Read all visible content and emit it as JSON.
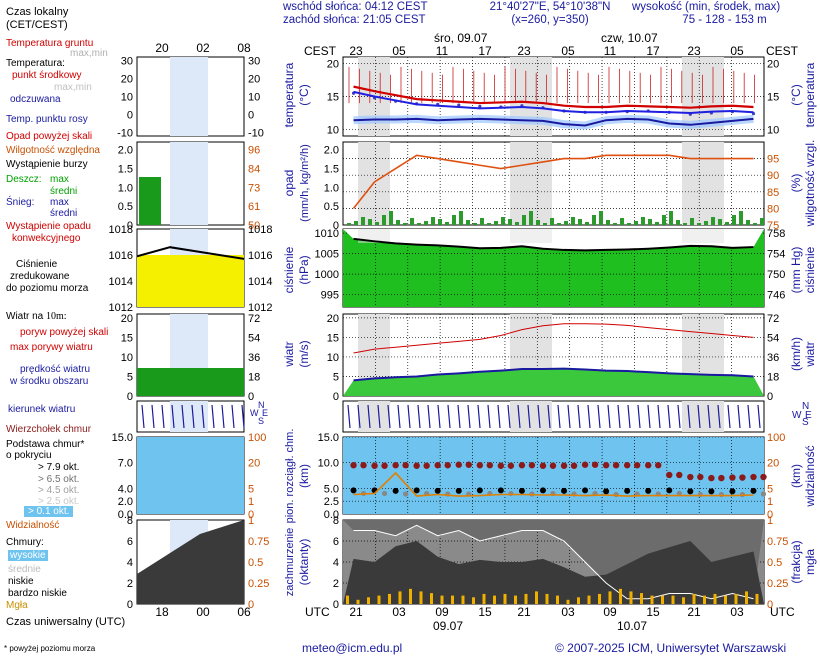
{
  "header": {
    "sunrise": "wschód słońca: 04:12 CEST",
    "sunset": "zachód słońca: 21:05 CEST",
    "coords": "21°40'27\"E, 54°10'38\"N",
    "grid": "(x=260, y=350)",
    "alt_title": "wysokość (min, środek, max)",
    "alt_values": "75 - 128 - 153 m",
    "cest": "CEST",
    "day1": "śro, 09.07",
    "day2": "czw, 10.07",
    "top_hours": [
      "23",
      "05",
      "11",
      "17",
      "23",
      "05",
      "11",
      "17",
      "23",
      "05"
    ],
    "left_top_hours": [
      "20",
      "02",
      "08"
    ],
    "utc": "UTC",
    "bottom_hours": [
      "21",
      "03",
      "09",
      "15",
      "21",
      "03",
      "09",
      "15",
      "21",
      "03"
    ],
    "bottom_day1": "09.07",
    "bottom_day2": "10.07",
    "left_bottom_hours": [
      "18",
      "00",
      "06"
    ]
  },
  "legend": {
    "time_zone": "Czas lokalny",
    "time_zone2": "(CET/CEST)",
    "soil_temp": "Temperatura gruntu",
    "maxmin": "max,min",
    "temperature": "Temperatura:",
    "midpoint": "punkt środkowy",
    "maxmin2": "max,min",
    "felt": "odczuwana",
    "dew": "Temp. punktu rosy",
    "rain_over": "Opad powyżej skali",
    "humidity": "Wilgotność względna",
    "storm": "Wystąpienie burzy",
    "rain": "Deszcz:",
    "rain_max": "max",
    "rain_mean": "średni",
    "snow": "Śnieg:",
    "snow_max": "max",
    "snow_mean": "średni",
    "conv": "Wystąpienie opadu",
    "conv2": "konwekcyjnego",
    "pressure": "Ciśnienie",
    "pressure2": "zredukowane",
    "pressure3": "do poziomu morza",
    "wind": "Wiatr na",
    "wind_h": "10m:",
    "gust_over": "poryw powyżej skali",
    "gust_max": "max porywy wiatru",
    "wind_speed": "prędkość wiatru",
    "wind_area": "w środku obszaru",
    "wind_dir": "kierunek wiatru",
    "cloud_top": "Wierzchołek chmur",
    "cloud_base": "Podstawa chmur*",
    "cloud_base2": "o pokryciu",
    "okt1": "> 7.9 okt.",
    "okt2": "> 6.5 okt.",
    "okt3": "> 4.5 okt.",
    "okt4": "> 2.5 okt.",
    "okt5": "> 0.1 okt.",
    "visibility": "Widzialność",
    "clouds": "Chmury:",
    "cl_high": "wysokie",
    "cl_mid": "średnie",
    "cl_low": "niskie",
    "cl_vlow": "bardzo niskie",
    "fog": "Mgła",
    "utc_time": "Czas uniwersalny (UTC)",
    "footnote": "* powyżej poziomu morza"
  },
  "axis_labels": {
    "temp_l": "temperatura",
    "temp_lu": "(°C)",
    "temp_ru": "(°C)",
    "temp_r": "temperatura",
    "rain_l": "opad",
    "rain_lu": "(mm/h, kg/m²/h)",
    "hum_ru": "(%)",
    "hum_r": "wilgotność wzgl.",
    "pres_l": "ciśnienie",
    "pres_lu": "(hPa)",
    "pres_ru": "(mm Hg)",
    "pres_r": "ciśnienie",
    "wind_l": "wiatr",
    "wind_lu": "(m/s)",
    "wind_ru": "(km/h)",
    "wind_r": "wiatr",
    "cb_l": "pion. rozciągł. chm.",
    "cb_lu": "(km)",
    "vis_ru": "(km)",
    "vis_r": "widzialność",
    "cl_l": "zachmurzenie",
    "cl_lu": "(oktanty)",
    "fog_ru": "(frakcja)",
    "fog_r": "mgła",
    "compass": [
      "N",
      "W",
      "E",
      "S"
    ]
  },
  "ticks": {
    "temp_main": [
      "20",
      "15",
      "10"
    ],
    "temp_left": [
      "30",
      "20",
      "10",
      "0",
      "-10"
    ],
    "rain_main": [
      "2.0",
      "1.5",
      "1.0",
      "0.5",
      "0"
    ],
    "rain_left": [
      "2.0",
      "1.5",
      "1.0",
      "0.5",
      "0"
    ],
    "hum": [
      "95",
      "90",
      "85",
      "80",
      "75"
    ],
    "hum_left": [
      "96",
      "84",
      "73",
      "61",
      "50"
    ],
    "pres_main": [
      "1010",
      "1005",
      "1000",
      "995"
    ],
    "pres_main_r": [
      "758",
      "754",
      "750",
      "746"
    ],
    "pres_left": [
      "1018",
      "1016",
      "1014",
      "1012"
    ],
    "pres_left_r": [
      "1018",
      "1016",
      "1014",
      "1012"
    ],
    "wind_main": [
      "20",
      "15",
      "10",
      "5",
      "0"
    ],
    "wind_main_r": [
      "72",
      "54",
      "36",
      "18",
      "0"
    ],
    "wind_left": [
      "20",
      "15",
      "10",
      "5",
      "0"
    ],
    "wind_left_r": [
      "72",
      "54",
      "36",
      "18",
      "0"
    ],
    "cb_main": [
      "15.0",
      "10.0",
      "5.0",
      "2.5",
      "0.0"
    ],
    "cb_left": [
      "15.0",
      "7.0",
      "4.0",
      "2.0",
      "0.0"
    ],
    "vis_main": [
      "100",
      "20",
      "5",
      "1",
      "0"
    ],
    "vis_left": [
      "100",
      "20",
      "5",
      "1",
      "0"
    ],
    "cl_main": [
      "8",
      "6",
      "4",
      "2",
      "0"
    ],
    "fog_main": [
      "1",
      "0.75",
      "0.5",
      "0.25",
      "0"
    ],
    "cl_left": [
      "8",
      "6",
      "4",
      "2",
      "0"
    ],
    "fog_left": [
      "1",
      "0.75",
      "0.5",
      "0.25",
      "0"
    ]
  },
  "colors": {
    "blue": "#1a1aa0",
    "red": "#d00000",
    "orange": "#c85000",
    "green": "#00a000",
    "night": "#c8c8c8"
  },
  "chart_data": [
    {
      "type": "line",
      "title": "temperatura",
      "series": [
        {
          "name": "punkt środkowy",
          "values": [
            16.5,
            15.8,
            15.2,
            14.6,
            14.4,
            14.2,
            14.0,
            14.1,
            14.2,
            14.0,
            13.6,
            13.4,
            13.4,
            13.6,
            13.5,
            13.4,
            13.3,
            13.5,
            13.6,
            13.4
          ]
        },
        {
          "name": "odczuwana",
          "values": [
            15.5,
            14.8,
            14.3,
            13.9,
            13.8,
            13.7,
            13.5,
            13.4,
            13.6,
            13.3,
            12.8,
            12.6,
            12.6,
            12.7,
            12.8,
            12.6,
            12.3,
            12.5,
            12.7,
            12.4
          ]
        },
        {
          "name": "Temp. punktu rosy",
          "values": [
            11.4,
            11.5,
            11.5,
            11.6,
            11.4,
            11.5,
            11.6,
            11.5,
            11.4,
            11.3,
            10.8,
            10.6,
            11.4,
            11.6,
            11.5,
            10.9,
            10.7,
            11.0,
            11.3,
            11.6
          ]
        }
      ],
      "ylim": [
        9,
        21
      ]
    },
    {
      "type": "line",
      "title": "wilgotność wzgl.",
      "series": [
        {
          "name": "Wilgotność względna",
          "values": [
            80,
            88,
            92,
            96,
            95,
            94,
            93,
            92,
            93,
            94,
            95,
            95,
            96,
            96,
            96,
            96,
            95,
            95,
            95,
            95
          ]
        }
      ],
      "ylim": [
        75,
        100
      ]
    },
    {
      "type": "area",
      "title": "ciśnienie",
      "series": [
        {
          "name": "Ciśnienie",
          "values": [
            1008.6,
            1008.0,
            1007.5,
            1007.2,
            1007.0,
            1006.7,
            1006.3,
            1006.4,
            1006.8,
            1006.2,
            1005.9,
            1005.8,
            1005.9,
            1006.0,
            1006.2,
            1006.5,
            1006.9,
            1006.8,
            1006.4,
            1006.6
          ]
        }
      ],
      "ylim": [
        992,
        1011
      ]
    },
    {
      "type": "line",
      "title": "wiatr",
      "series": [
        {
          "name": "prędkość wiatru",
          "values": [
            4.0,
            4.5,
            4.8,
            5.0,
            5.5,
            5.8,
            6.2,
            6.5,
            6.9,
            6.9,
            7.0,
            6.8,
            6.5,
            6.4,
            6.1,
            5.8,
            5.6,
            5.4,
            5.3,
            5.0
          ]
        },
        {
          "name": "max porywy wiatru",
          "values": [
            11,
            12,
            12.5,
            13,
            13.5,
            14,
            14.5,
            15.5,
            17,
            18,
            18.5,
            18.5,
            18.4,
            18.1,
            17.5,
            17,
            16.5,
            16,
            15.5,
            15
          ]
        }
      ],
      "ylim": [
        0,
        21
      ]
    },
    {
      "type": "scatter",
      "title": "pion. rozciągł. chm.",
      "series": [
        {
          "name": "Wierzchołek chmur",
          "values": [
            9.5,
            9.4,
            9.5,
            9.4,
            9.5,
            9.6,
            9.5,
            9.4,
            9.5,
            9.4,
            9.4,
            9.6,
            9.5,
            9.5,
            9.5,
            7.6,
            7.2,
            7.0,
            7.1,
            7.2
          ]
        },
        {
          "name": "> 7.9 okt.",
          "values": [
            5.8,
            5.8,
            5.7,
            5.8,
            5.7,
            5.7,
            5.8,
            5.8,
            5.7,
            5.8,
            5.7,
            5.8,
            5.6,
            5.7,
            5.7,
            5.8,
            5.6,
            5.6,
            5.6,
            5.7
          ]
        },
        {
          "name": "Widzialność",
          "values": [
            3.8,
            4.0,
            8.0,
            3.5,
            3.8,
            3.5,
            3.6,
            3.8,
            3.8,
            3.7,
            3.7,
            3.6,
            3.7,
            3.5,
            3.6,
            3.6,
            3.6,
            3.6,
            3.6,
            3.7
          ]
        }
      ],
      "ylim": [
        0,
        15
      ]
    },
    {
      "type": "area",
      "title": "zachmurzenie",
      "series": [
        {
          "name": "wysokie",
          "values": [
            7,
            7,
            6.5,
            7.5,
            6.5,
            7,
            6,
            6.5,
            7,
            7,
            6,
            4,
            2,
            0.5,
            0.5,
            1,
            1,
            0.5,
            1,
            0.5
          ]
        },
        {
          "name": "niskie",
          "values": [
            4.3,
            4.0,
            5.5,
            6.0,
            4.5,
            3.8,
            4.2,
            4.0,
            4.0,
            4.3,
            3.5,
            2.6,
            2.8,
            3.8,
            4.8,
            5.4,
            6.0,
            4.0,
            4.5,
            5.0
          ]
        },
        {
          "name": "Mgła",
          "values": [
            0.1,
            0.05,
            0.08,
            0.1,
            0.12,
            0.15,
            0.18,
            0.15,
            0.13,
            0.1,
            0.1,
            0.1,
            0.08,
            0.12,
            0.1,
            0.12,
            0.1,
            0.12,
            0.15,
            0.12
          ]
        }
      ],
      "ylim": [
        0,
        8
      ]
    }
  ]
}
